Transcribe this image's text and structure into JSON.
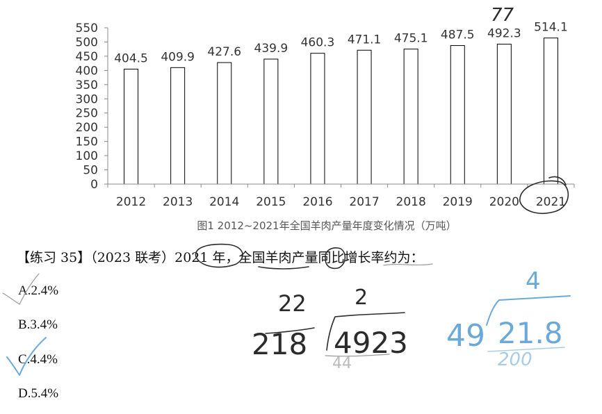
{
  "chart_data": {
    "type": "bar",
    "categories": [
      "2012",
      "2013",
      "2014",
      "2015",
      "2016",
      "2017",
      "2018",
      "2019",
      "2020",
      "2021"
    ],
    "values": [
      404.5,
      409.9,
      427.6,
      439.9,
      460.3,
      471.1,
      475.1,
      487.5,
      492.3,
      514.1
    ],
    "value_labels": [
      "404.5",
      "409.9",
      "427.6",
      "439.9",
      "460.3",
      "471.1",
      "475.1",
      "487.5",
      "492.3",
      "514.1"
    ],
    "yticks": [
      "0",
      "50",
      "100",
      "150",
      "200",
      "250",
      "300",
      "350",
      "400",
      "450",
      "500",
      "550"
    ],
    "ylim": [
      0,
      550
    ],
    "caption": "图1  2012~2021年全国羊肉产量年度变化情况（万吨）",
    "bar_fill": "#ffffff",
    "bar_stroke": "#000000",
    "axis_color": "#888888"
  },
  "question": {
    "text": "【练习 35】（2023 联考）2021 年，全国羊肉产量同比增长率约为："
  },
  "options": [
    {
      "label": "A.2.4%"
    },
    {
      "label": "B.3.4%"
    },
    {
      "label": "C.4.4%"
    },
    {
      "label": "D.5.4%"
    }
  ],
  "handwriting": {
    "note_77": "77",
    "pencil_calc": [
      "22",
      "2",
      "218",
      "4923",
      "44"
    ],
    "blue_calc": [
      "4",
      "49",
      "21.8",
      "200"
    ],
    "pencil_color": "#2b2b2b",
    "blue_color": "#6aa9d8"
  }
}
